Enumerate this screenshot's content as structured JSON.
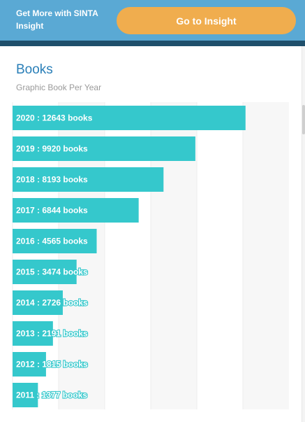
{
  "banner": {
    "promo_text": "Get More with SINTA Insight",
    "button_label": "Go to Insight"
  },
  "colors": {
    "banner_bg": "#5aa9d4",
    "button_bg": "#f0ad4e",
    "bar": "#35c8cc",
    "title": "#2a7fb8"
  },
  "chart_data": {
    "type": "bar",
    "orientation": "horizontal",
    "title": "Books",
    "subtitle": "Graphic Book Per Year",
    "categories": [
      "2020",
      "2019",
      "2018",
      "2017",
      "2016",
      "2015",
      "2014",
      "2013",
      "2012",
      "2011"
    ],
    "values": [
      12643,
      9920,
      8193,
      6844,
      4565,
      3474,
      2726,
      2191,
      1815,
      1377
    ],
    "labels": [
      "2020 : 12643 books",
      "2019 : 9920 books",
      "2018 : 8193 books",
      "2017 : 6844 books",
      "2016 : 4565 books",
      "2015 : 3474 books",
      "2014 : 2726 books",
      "2013 : 2191 books",
      "2012 : 1815 books",
      "2011 : 1377 books"
    ],
    "xlim": [
      0,
      15000
    ],
    "grid": true,
    "legend": "none"
  }
}
